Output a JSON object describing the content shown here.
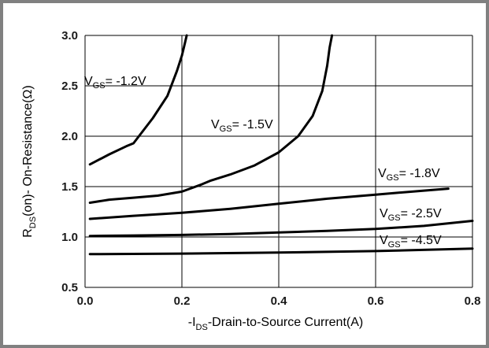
{
  "chart_data": {
    "type": "line",
    "xlabel": {
      "prefix": "-I",
      "sub": "DS",
      "suffix": "-Drain-to-Source  Current(A)"
    },
    "ylabel": {
      "prefix": "R",
      "sub": "DS",
      "suffix": "(on)- On-Resistance(Ω)"
    },
    "xlim": [
      0.0,
      0.8
    ],
    "ylim": [
      0.5,
      3.0
    ],
    "xticks": [
      "0.0",
      "0.2",
      "0.4",
      "0.6",
      "0.8"
    ],
    "yticks": [
      "0.5",
      "1.0",
      "1.5",
      "2.0",
      "2.5",
      "3.0"
    ],
    "grid": true,
    "series": [
      {
        "name": "-1.2V",
        "label": {
          "prefix": "V",
          "sub": "GS",
          "suffix": "= -1.2V"
        },
        "x": [
          0.01,
          0.05,
          0.085,
          0.1,
          0.14,
          0.17,
          0.19,
          0.2,
          0.205,
          0.208,
          0.21
        ],
        "y": [
          1.72,
          1.82,
          1.9,
          1.93,
          2.18,
          2.4,
          2.65,
          2.8,
          2.9,
          2.96,
          3.0
        ]
      },
      {
        "name": "-1.5V",
        "label": {
          "prefix": "V",
          "sub": "GS",
          "suffix": "= -1.5V"
        },
        "x": [
          0.01,
          0.05,
          0.1,
          0.15,
          0.2,
          0.24,
          0.26,
          0.3,
          0.35,
          0.4,
          0.44,
          0.47,
          0.49,
          0.5,
          0.505,
          0.51
        ],
        "y": [
          1.34,
          1.37,
          1.39,
          1.41,
          1.45,
          1.52,
          1.56,
          1.62,
          1.71,
          1.84,
          2.0,
          2.2,
          2.45,
          2.7,
          2.88,
          3.0
        ]
      },
      {
        "name": "-1.8V",
        "label": {
          "prefix": "V",
          "sub": "GS",
          "suffix": "= -1.8V"
        },
        "x": [
          0.01,
          0.1,
          0.2,
          0.3,
          0.4,
          0.5,
          0.6,
          0.7,
          0.75
        ],
        "y": [
          1.18,
          1.21,
          1.24,
          1.28,
          1.33,
          1.38,
          1.42,
          1.46,
          1.48
        ]
      },
      {
        "name": "-2.5V",
        "label": {
          "prefix": "V",
          "sub": "GS",
          "suffix": "= -2.5V"
        },
        "x": [
          0.01,
          0.1,
          0.2,
          0.3,
          0.4,
          0.5,
          0.6,
          0.7,
          0.8
        ],
        "y": [
          1.01,
          1.015,
          1.02,
          1.03,
          1.045,
          1.06,
          1.08,
          1.11,
          1.16
        ]
      },
      {
        "name": "-4.5V",
        "label": {
          "prefix": "V",
          "sub": "GS",
          "suffix": "= -4.5V"
        },
        "x": [
          0.01,
          0.2,
          0.4,
          0.6,
          0.8
        ],
        "y": [
          0.83,
          0.835,
          0.845,
          0.86,
          0.885
        ]
      }
    ]
  }
}
